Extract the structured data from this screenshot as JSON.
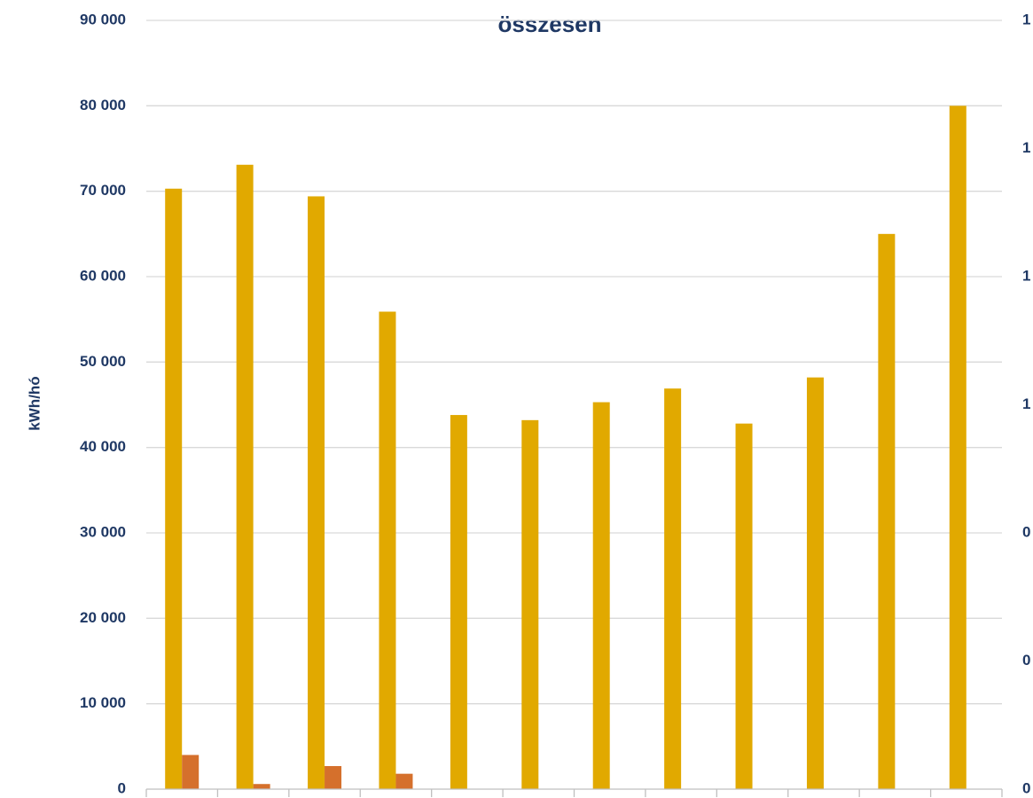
{
  "chart_data": {
    "type": "bar",
    "title": "összesen",
    "y_label": "kWh/hó",
    "categories": [
      null,
      null,
      null,
      null,
      null,
      null,
      null,
      null,
      null,
      null,
      null,
      null
    ],
    "series": [
      {
        "name": null,
        "color": "#e1a900",
        "values": [
          70300,
          73100,
          69400,
          55900,
          43800,
          43200,
          45300,
          46900,
          42800,
          48200,
          65000,
          80000
        ]
      },
      {
        "name": null,
        "color": "#d5702c",
        "values": [
          4000,
          600,
          2700,
          1800,
          0,
          0,
          0,
          0,
          0,
          0,
          0,
          0
        ]
      }
    ],
    "ylim": [
      0,
      90000
    ],
    "yticks": [
      {
        "value": 0,
        "label": "0"
      },
      {
        "value": 10000,
        "label": "10 000"
      },
      {
        "value": 20000,
        "label": "20 000"
      },
      {
        "value": 30000,
        "label": "30 000"
      },
      {
        "value": 40000,
        "label": "40 000"
      },
      {
        "value": 50000,
        "label": "50 000"
      },
      {
        "value": 60000,
        "label": "60 000"
      },
      {
        "value": 70000,
        "label": "70 000"
      },
      {
        "value": 80000,
        "label": "80 000"
      },
      {
        "value": 90000,
        "label": "90 000"
      }
    ],
    "y2lim": [
      0,
      1.2
    ],
    "y2ticks": [
      {
        "value": 0,
        "label": "0"
      },
      {
        "value": 0.2,
        "label": "0"
      },
      {
        "value": 0.4,
        "label": "0"
      },
      {
        "value": 0.6,
        "label": "1"
      },
      {
        "value": 0.8,
        "label": "1"
      },
      {
        "value": 1.0,
        "label": "1"
      },
      {
        "value": 1.2,
        "label": "1"
      }
    ],
    "grid": true
  }
}
